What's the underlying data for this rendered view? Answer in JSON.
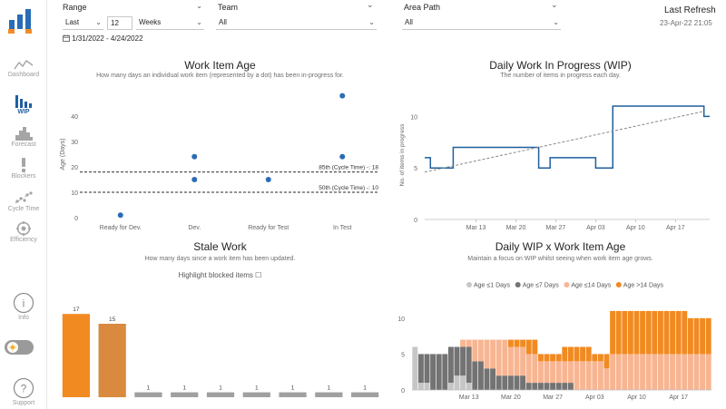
{
  "colors": {
    "accent": "#1f5f9e",
    "logo_blue": "#2a6cb5",
    "logo_orange": "#f28c28",
    "orange": "#f18a21",
    "orange_dark": "#d98a3e",
    "grey_bar": "#a0a0a0",
    "light_grey": "#c6c6c6",
    "dark_grey": "#737373",
    "peach": "#f8b592"
  },
  "filters": {
    "range_label": "Range",
    "range_mode": "Last",
    "range_count": "12",
    "range_unit": "Weeks",
    "team_label": "Team",
    "team_value": "All",
    "area_label": "Area Path",
    "area_value": "All",
    "date_range": "1/31/2022 - 4/24/2022",
    "calendar_icon": "calendar-icon"
  },
  "refresh": {
    "label": "Last Refresh",
    "value": "23-Apr-22 21:05"
  },
  "sidebar": {
    "items": [
      {
        "label": "Dashboard",
        "icon": "line-chart-icon"
      },
      {
        "label": "WIP",
        "icon": "bar-chart-icon"
      },
      {
        "label": "Forecast",
        "icon": "histogram-icon"
      },
      {
        "label": "Blockers",
        "icon": "exclamation-icon"
      },
      {
        "label": "Cycle Time",
        "icon": "scatter-icon"
      },
      {
        "label": "Efficiency",
        "icon": "gauge-icon"
      }
    ],
    "info_label": "Info",
    "support_label": "Support",
    "info_glyph": "i",
    "support_glyph": "?"
  },
  "charts": {
    "age": {
      "title": "Work Item Age",
      "subtitle": "How many days an individual work item (represented by a dot) has been in-progress for.",
      "ylabel": "Age (Days)",
      "p85_label": "85th (Cycle Time) -: 18",
      "p50_label": "50th (Cycle Time) -: 10"
    },
    "wip": {
      "title": "Daily Work In Progress (WIP)",
      "subtitle": "The number of items in progress each day.",
      "ylabel": "No. of items in progress"
    },
    "stale": {
      "title": "Stale Work",
      "subtitle": "How many days since a work item has been updated.",
      "highlight_label": "Highlight blocked items",
      "checkbox_glyph": "☐"
    },
    "wip_age": {
      "title": "Daily WIP x Work Item Age",
      "subtitle": "Maintain a focus on WIP whilst seeing when work item age grows."
    }
  },
  "chart_data": [
    {
      "type": "scatter",
      "title": "Work Item Age",
      "ylabel": "Age (Days)",
      "categories": [
        "Ready for Dev.",
        "Dev.",
        "Ready for Test",
        "In Test"
      ],
      "y_ticks": [
        0,
        10,
        20,
        30,
        40
      ],
      "ylim": [
        0,
        50
      ],
      "points": [
        {
          "category": "Ready for Dev.",
          "value": 1
        },
        {
          "category": "Dev.",
          "value": 24
        },
        {
          "category": "Dev.",
          "value": 15
        },
        {
          "category": "Ready for Test",
          "value": 15
        },
        {
          "category": "In Test",
          "value": 48
        },
        {
          "category": "In Test",
          "value": 24
        }
      ],
      "reference_lines": [
        {
          "label": "85th (Cycle Time) -: 18",
          "value": 18
        },
        {
          "label": "50th (Cycle Time) -: 10",
          "value": 10
        }
      ]
    },
    {
      "type": "line",
      "title": "Daily Work In Progress (WIP)",
      "ylabel": "No. of items in progress",
      "x_ticks": [
        "Mar 13",
        "Mar 20",
        "Mar 27",
        "Apr 03",
        "Apr 10",
        "Apr 17"
      ],
      "y_ticks": [
        0,
        5,
        10
      ],
      "ylim": [
        0,
        12.5
      ],
      "x_day_range": [
        0,
        50
      ],
      "x_tick_days": [
        9,
        16,
        23,
        30,
        37,
        44
      ],
      "series": [
        {
          "steps": [
            {
              "day": 0,
              "value": 6
            },
            {
              "day": 1,
              "value": 5
            },
            {
              "day": 5,
              "value": 7
            },
            {
              "day": 20,
              "value": 5
            },
            {
              "day": 22,
              "value": 6
            },
            {
              "day": 30,
              "value": 5
            },
            {
              "day": 33,
              "value": 11
            },
            {
              "day": 49,
              "value": 10
            }
          ],
          "end_day": 50
        }
      ],
      "trend": {
        "from": {
          "day": 0,
          "value": 4.6
        },
        "to": {
          "day": 49,
          "value": 10.5
        }
      }
    },
    {
      "type": "bar",
      "title": "Stale Work",
      "values": [
        17,
        15,
        1,
        1,
        1,
        1,
        1,
        1,
        1
      ],
      "ylim": [
        0,
        20
      ],
      "bar_colors": [
        "orange",
        "orange_dark",
        "grey_bar",
        "grey_bar",
        "grey_bar",
        "grey_bar",
        "grey_bar",
        "grey_bar",
        "grey_bar"
      ]
    },
    {
      "type": "bar",
      "stacked": true,
      "title": "Daily WIP x Work Item Age",
      "legend": [
        "Age ≤1 Days",
        "Age ≤7 Days",
        "Age ≤14 Days",
        "Age >14 Days"
      ],
      "legend_placement": "top",
      "series_colors": [
        "light_grey",
        "dark_grey",
        "peach",
        "orange"
      ],
      "x_ticks": [
        "Mar 13",
        "Mar 20",
        "Mar 27",
        "Apr 03",
        "Apr 10",
        "Apr 17"
      ],
      "x_tick_days": [
        9,
        16,
        23,
        30,
        37,
        44
      ],
      "y_ticks": [
        0,
        5,
        10
      ],
      "ylim": [
        0,
        12
      ],
      "days": [
        [
          6,
          0,
          0,
          0
        ],
        [
          1,
          4,
          0,
          0
        ],
        [
          1,
          4,
          0,
          0
        ],
        [
          0,
          5,
          0,
          0
        ],
        [
          0,
          5,
          0,
          0
        ],
        [
          0,
          5,
          0,
          0
        ],
        [
          1,
          5,
          0,
          0
        ],
        [
          2,
          4,
          0,
          0
        ],
        [
          2,
          4,
          1,
          0
        ],
        [
          1,
          5,
          1,
          0
        ],
        [
          0,
          4,
          3,
          0
        ],
        [
          0,
          4,
          3,
          0
        ],
        [
          0,
          3,
          4,
          0
        ],
        [
          0,
          3,
          4,
          0
        ],
        [
          0,
          2,
          5,
          0
        ],
        [
          0,
          2,
          5,
          0
        ],
        [
          0,
          2,
          4,
          1
        ],
        [
          0,
          2,
          4,
          1
        ],
        [
          0,
          2,
          4,
          1
        ],
        [
          0,
          1,
          4,
          2
        ],
        [
          0,
          1,
          4,
          2
        ],
        [
          0,
          1,
          3,
          1
        ],
        [
          0,
          1,
          3,
          1
        ],
        [
          0,
          1,
          3,
          1
        ],
        [
          0,
          1,
          3,
          1
        ],
        [
          0,
          1,
          3,
          2
        ],
        [
          0,
          1,
          3,
          2
        ],
        [
          0,
          0,
          4,
          2
        ],
        [
          0,
          0,
          4,
          2
        ],
        [
          0,
          0,
          4,
          2
        ],
        [
          0,
          0,
          4,
          1
        ],
        [
          0,
          0,
          4,
          1
        ],
        [
          0,
          0,
          3,
          2
        ],
        [
          0,
          0,
          5,
          6
        ],
        [
          0,
          0,
          5,
          6
        ],
        [
          0,
          0,
          5,
          6
        ],
        [
          0,
          0,
          5,
          6
        ],
        [
          0,
          0,
          5,
          6
        ],
        [
          0,
          0,
          5,
          6
        ],
        [
          0,
          0,
          5,
          6
        ],
        [
          0,
          0,
          5,
          6
        ],
        [
          0,
          0,
          5,
          6
        ],
        [
          0,
          0,
          5,
          6
        ],
        [
          0,
          0,
          5,
          6
        ],
        [
          0,
          0,
          5,
          6
        ],
        [
          0,
          0,
          5,
          6
        ],
        [
          0,
          0,
          5,
          5
        ],
        [
          0,
          0,
          5,
          5
        ],
        [
          0,
          0,
          5,
          5
        ],
        [
          0,
          0,
          5,
          5
        ]
      ]
    }
  ]
}
